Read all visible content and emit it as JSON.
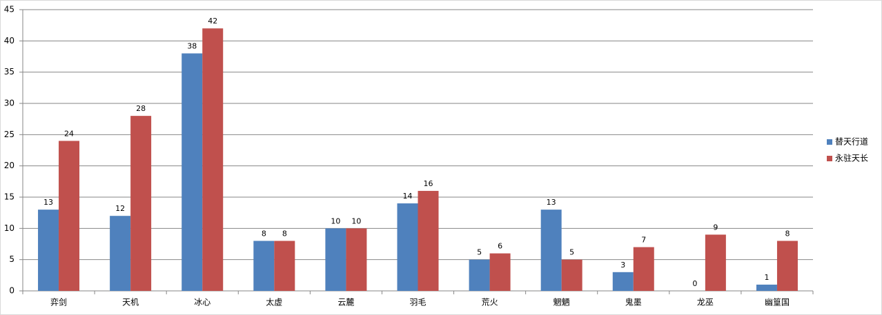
{
  "chart_data": {
    "type": "bar",
    "categories": [
      "弈剑",
      "天机",
      "冰心",
      "太虚",
      "云麓",
      "羽毛",
      "荒火",
      "魍魉",
      "鬼墨",
      "龙巫",
      "幽篁国"
    ],
    "series": [
      {
        "name": "替天行道",
        "color": "#4f81bd",
        "values": [
          13,
          12,
          38,
          8,
          10,
          14,
          5,
          13,
          3,
          0,
          1
        ]
      },
      {
        "name": "永驻天长",
        "color": "#c0504d",
        "values": [
          24,
          28,
          42,
          8,
          10,
          16,
          6,
          5,
          7,
          9,
          8
        ]
      }
    ],
    "ylim": [
      0,
      45
    ],
    "yticks": [
      0,
      5,
      10,
      15,
      20,
      25,
      30,
      35,
      40,
      45
    ],
    "grid": true,
    "legend": "right",
    "data_labels": true
  }
}
